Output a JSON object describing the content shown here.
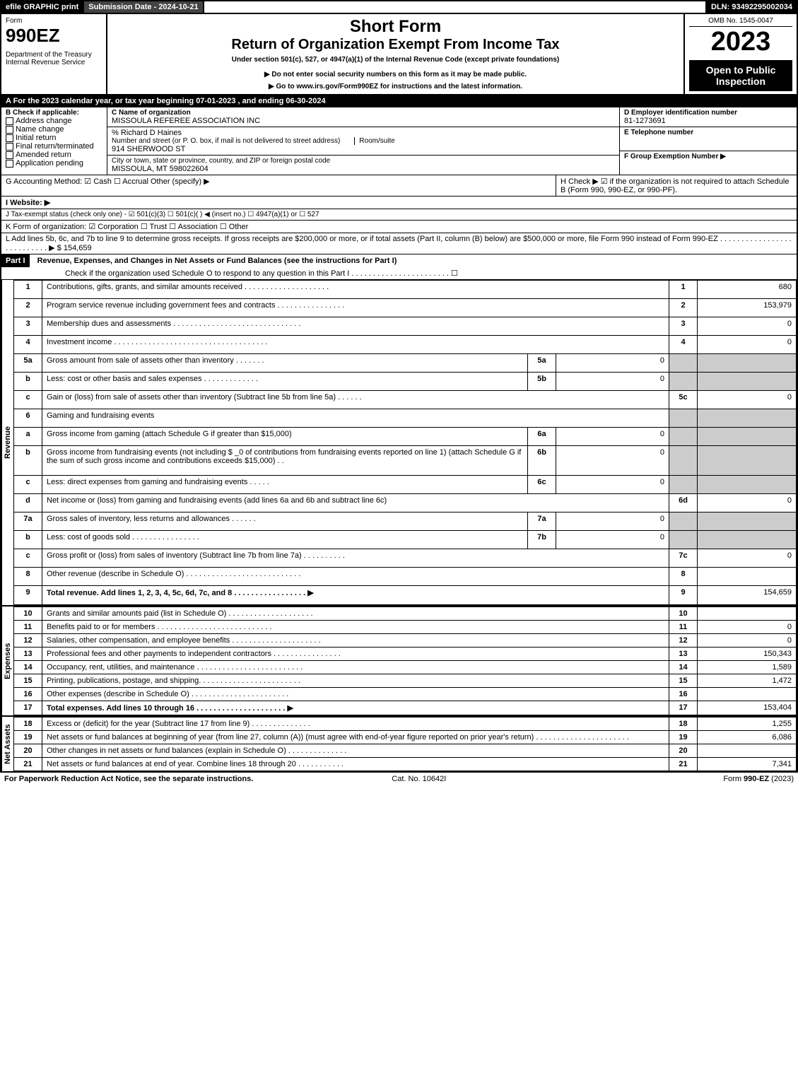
{
  "topbar": {
    "efile": "efile GRAPHIC print",
    "submission": "Submission Date - 2024-10-21",
    "dln": "DLN: 93492295002034"
  },
  "header": {
    "form_label": "Form",
    "form_no": "990EZ",
    "dept": "Department of the Treasury\nInternal Revenue Service",
    "short_form": "Short Form",
    "title": "Return of Organization Exempt From Income Tax",
    "subtitle": "Under section 501(c), 527, or 4947(a)(1) of the Internal Revenue Code (except private foundations)",
    "warn": "▶ Do not enter social security numbers on this form as it may be made public.",
    "goto": "▶ Go to www.irs.gov/Form990EZ for instructions and the latest information.",
    "omb": "OMB No. 1545-0047",
    "year": "2023",
    "open": "Open to Public Inspection"
  },
  "A": "A  For the 2023 calendar year, or tax year beginning 07-01-2023 , and ending 06-30-2024",
  "B": {
    "label": "B  Check if applicable:",
    "items": [
      "Address change",
      "Name change",
      "Initial return",
      "Final return/terminated",
      "Amended return",
      "Application pending"
    ]
  },
  "C": {
    "name_label": "C Name of organization",
    "name": "MISSOULA REFEREE ASSOCIATION INC",
    "care_of": "% Richard D Haines",
    "street_label": "Number and street (or P. O. box, if mail is not delivered to street address)",
    "room_label": "Room/suite",
    "street": "914 SHERWOOD ST",
    "city_label": "City or town, state or province, country, and ZIP or foreign postal code",
    "city": "MISSOULA, MT  598022604"
  },
  "D": {
    "label": "D Employer identification number",
    "value": "81-1273691"
  },
  "E": {
    "label": "E Telephone number",
    "value": ""
  },
  "F": {
    "label": "F Group Exemption Number  ▶",
    "value": ""
  },
  "G": "G Accounting Method:   ☑ Cash  ☐ Accrual   Other (specify) ▶",
  "H": "H   Check ▶  ☑  if the organization is not required to attach Schedule B (Form 990, 990-EZ, or 990-PF).",
  "I": "I Website: ▶",
  "J": "J Tax-exempt status (check only one) -  ☑ 501(c)(3)  ☐  501(c)(  ) ◀ (insert no.)  ☐  4947(a)(1) or  ☐  527",
  "K": "K Form of organization:   ☑ Corporation   ☐ Trust   ☐ Association   ☐ Other",
  "L": {
    "text": "L Add lines 5b, 6c, and 7b to line 9 to determine gross receipts. If gross receipts are $200,000 or more, or if total assets (Part II, column (B) below) are $500,000 or more, file Form 990 instead of Form 990-EZ  . . . . . . . . . . . . . . . . . . . . . . . . . . .  ▶ $",
    "amount": "154,659"
  },
  "part1": {
    "label": "Part I",
    "title": "Revenue, Expenses, and Changes in Net Assets or Fund Balances (see the instructions for Part I)",
    "check": "Check if the organization used Schedule O to respond to any question in this Part I . . . . . . . . . . . . . . . . . . . . . . .  ☐"
  },
  "sections": {
    "revenue_label": "Revenue",
    "expenses_label": "Expenses",
    "netassets_label": "Net Assets"
  },
  "lines": [
    {
      "n": "1",
      "t": "Contributions, gifts, grants, and similar amounts received . . . . . . . . . . . . . . . . . . . .",
      "r": "1",
      "a": "680"
    },
    {
      "n": "2",
      "t": "Program service revenue including government fees and contracts . . . . . . . . . . . . . . . .",
      "r": "2",
      "a": "153,979"
    },
    {
      "n": "3",
      "t": "Membership dues and assessments . . . . . . . . . . . . . . . . . . . . . . . . . . . . . .",
      "r": "3",
      "a": "0"
    },
    {
      "n": "4",
      "t": "Investment income . . . . . . . . . . . . . . . . . . . . . . . . . . . . . . . . . . . .",
      "r": "4",
      "a": "0"
    },
    {
      "n": "5a",
      "t": "Gross amount from sale of assets other than inventory  . . . . . . .",
      "sub": "5a",
      "sa": "0"
    },
    {
      "n": "b",
      "t": "Less: cost or other basis and sales expenses . . . . . . . . . . . . .",
      "sub": "5b",
      "sa": "0"
    },
    {
      "n": "c",
      "t": "Gain or (loss) from sale of assets other than inventory (Subtract line 5b from line 5a)  . . . . . .",
      "r": "5c",
      "a": "0"
    },
    {
      "n": "6",
      "t": "Gaming and fundraising events"
    },
    {
      "n": "a",
      "t": "Gross income from gaming (attach Schedule G if greater than $15,000)",
      "sub": "6a",
      "sa": "0"
    },
    {
      "n": "b",
      "t": "Gross income from fundraising events (not including $ _0           of contributions from fundraising events reported on line 1) (attach Schedule G if the sum of such gross income and contributions exceeds $15,000)   .  .",
      "sub": "6b",
      "sa": "0"
    },
    {
      "n": "c",
      "t": "Less: direct expenses from gaming and fundraising events  . . . . .",
      "sub": "6c",
      "sa": "0"
    },
    {
      "n": "d",
      "t": "Net income or (loss) from gaming and fundraising events (add lines 6a and 6b and subtract line 6c)",
      "r": "6d",
      "a": "0"
    },
    {
      "n": "7a",
      "t": "Gross sales of inventory, less returns and allowances  . . . . . .",
      "sub": "7a",
      "sa": "0"
    },
    {
      "n": "b",
      "t": "Less: cost of goods sold        . . . . . . . . . . . . . . . .",
      "sub": "7b",
      "sa": "0"
    },
    {
      "n": "c",
      "t": "Gross profit or (loss) from sales of inventory (Subtract line 7b from line 7a)  . . . . . . . . . .",
      "r": "7c",
      "a": "0"
    },
    {
      "n": "8",
      "t": "Other revenue (describe in Schedule O) . . . . . . . . . . . . . . . . . . . . . . . . . . .",
      "r": "8",
      "a": ""
    },
    {
      "n": "9",
      "t": "Total revenue. Add lines 1, 2, 3, 4, 5c, 6d, 7c, and 8  . . . . . . . . . . . . . . . . .   ▶",
      "r": "9",
      "a": "154,659",
      "bold": true
    }
  ],
  "exp": [
    {
      "n": "10",
      "t": "Grants and similar amounts paid (list in Schedule O) . . . . . . . . . . . . . . . . . . . .",
      "r": "10",
      "a": ""
    },
    {
      "n": "11",
      "t": "Benefits paid to or for members      . . . . . . . . . . . . . . . . . . . . . . . . . . .",
      "r": "11",
      "a": "0"
    },
    {
      "n": "12",
      "t": "Salaries, other compensation, and employee benefits . . . . . . . . . . . . . . . . . . . . .",
      "r": "12",
      "a": "0"
    },
    {
      "n": "13",
      "t": "Professional fees and other payments to independent contractors . . . . . . . . . . . . . . . .",
      "r": "13",
      "a": "150,343"
    },
    {
      "n": "14",
      "t": "Occupancy, rent, utilities, and maintenance . . . . . . . . . . . . . . . . . . . . . . . . .",
      "r": "14",
      "a": "1,589"
    },
    {
      "n": "15",
      "t": "Printing, publications, postage, and shipping.  . . . . . . . . . . . . . . . . . . . . . . .",
      "r": "15",
      "a": "1,472"
    },
    {
      "n": "16",
      "t": "Other expenses (describe in Schedule O)      . . . . . . . . . . . . . . . . . . . . . . .",
      "r": "16",
      "a": ""
    },
    {
      "n": "17",
      "t": "Total expenses. Add lines 10 through 16      . . . . . . . . . . . . . . . . . . . . .  ▶",
      "r": "17",
      "a": "153,404",
      "bold": true
    }
  ],
  "net": [
    {
      "n": "18",
      "t": "Excess or (deficit) for the year (Subtract line 17 from line 9)        . . . . . . . . . . . . . .",
      "r": "18",
      "a": "1,255"
    },
    {
      "n": "19",
      "t": "Net assets or fund balances at beginning of year (from line 27, column (A)) (must agree with end-of-year figure reported on prior year's return) . . . . . . . . . . . . . . . . . . . . . .",
      "r": "19",
      "a": "6,086"
    },
    {
      "n": "20",
      "t": "Other changes in net assets or fund balances (explain in Schedule O) . . . . . . . . . . . . . .",
      "r": "20",
      "a": ""
    },
    {
      "n": "21",
      "t": "Net assets or fund balances at end of year. Combine lines 18 through 20 . . . . . . . . . . .",
      "r": "21",
      "a": "7,341"
    }
  ],
  "footer": {
    "left": "For Paperwork Reduction Act Notice, see the separate instructions.",
    "center": "Cat. No. 10642I",
    "right": "Form 990-EZ (2023)"
  }
}
